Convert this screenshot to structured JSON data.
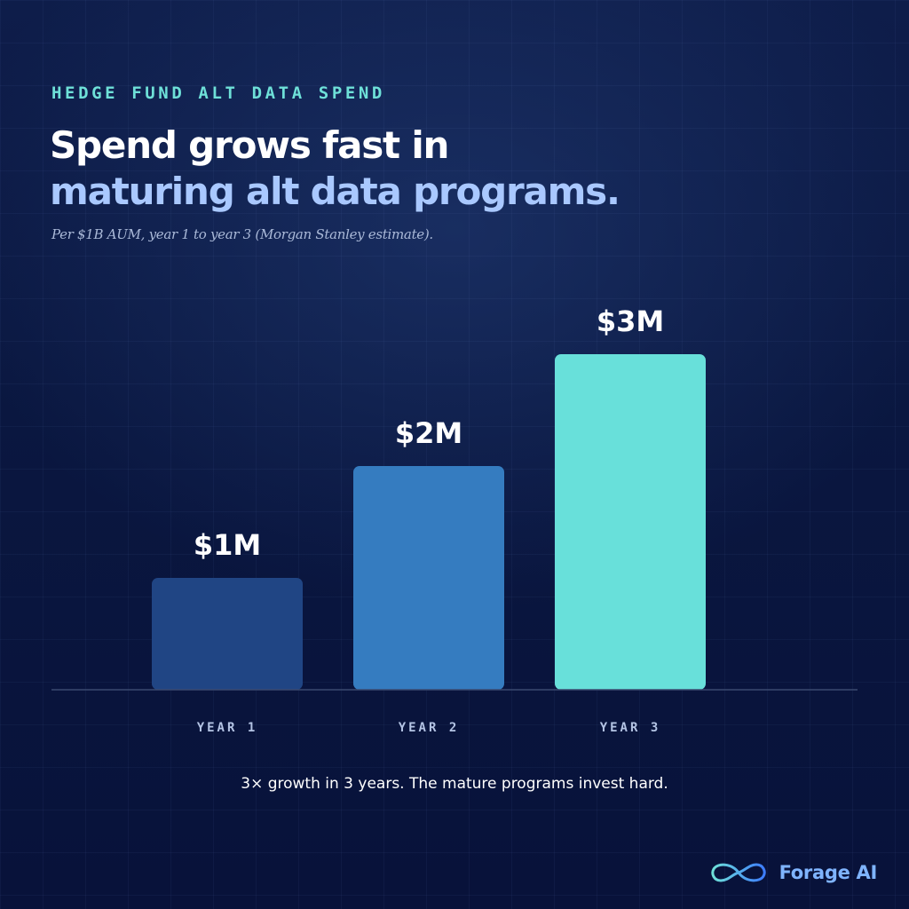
{
  "eyebrow": "HEDGE FUND ALT DATA SPEND",
  "title": {
    "line1": "Spend grows fast in",
    "line2": "maturing alt data programs."
  },
  "subtitle": "Per $1B AUM, year 1 to year 3 (Morgan Stanley estimate).",
  "caption": "3× growth in 3 years. The mature programs invest hard.",
  "brand": {
    "name": "Forage AI",
    "logo_icon": "infinity-logo-icon"
  },
  "colors": {
    "year1": "#204584",
    "year2": "#357cc0",
    "year3": "#68e0da",
    "accent": "#6ee0d8"
  },
  "chart_data": {
    "type": "bar",
    "categories": [
      "YEAR 1",
      "YEAR 2",
      "YEAR 3"
    ],
    "values": [
      1,
      2,
      3
    ],
    "value_labels": [
      "$1M",
      "$2M",
      "$3M"
    ],
    "unit": "$M",
    "ylim": [
      0,
      3.3
    ],
    "grid": false,
    "legend": "none",
    "bar_colors": [
      "#204584",
      "#357cc0",
      "#68e0da"
    ]
  }
}
